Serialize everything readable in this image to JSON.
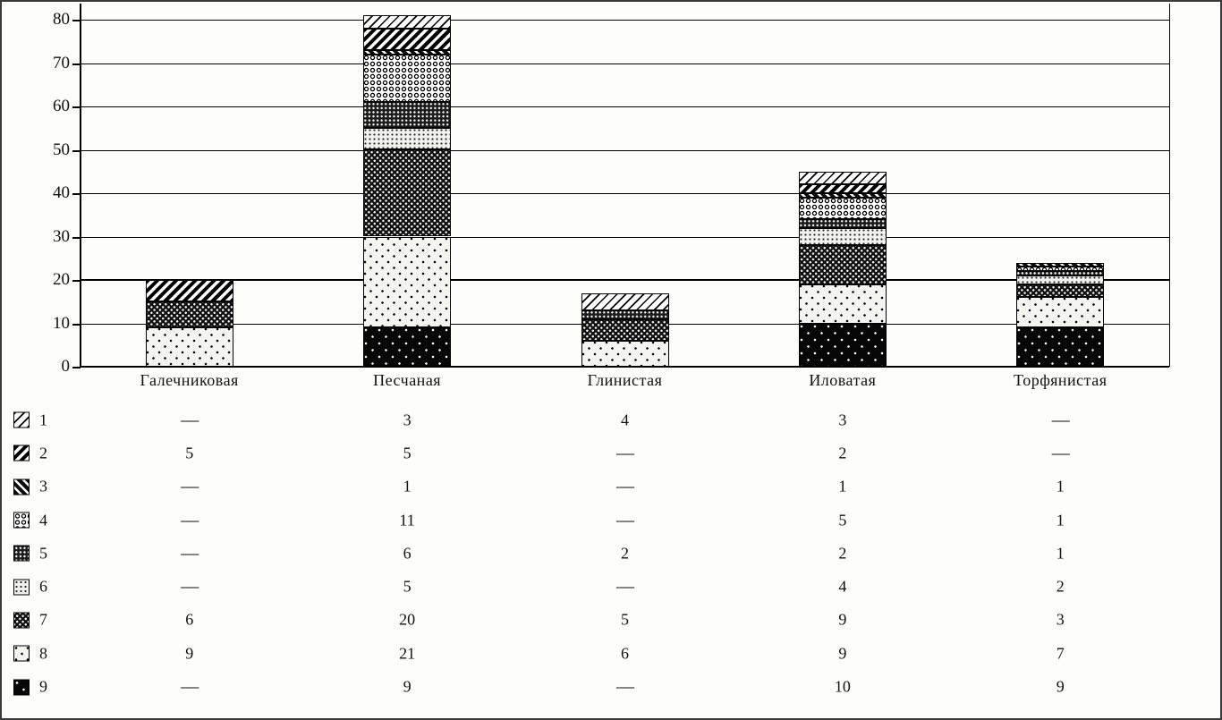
{
  "chart_data": {
    "type": "bar",
    "variant": "stacked-vertical",
    "title": "",
    "xlabel": "",
    "ylabel": "",
    "categories": [
      "Галечниковая",
      "Песчаная",
      "Глинистая",
      "Иловатая",
      "Торфянистая"
    ],
    "series": [
      {
        "name": "1",
        "pattern": "p1",
        "pattern_desc": "light diagonal hatch",
        "values": [
          null,
          3,
          4,
          3,
          null
        ]
      },
      {
        "name": "2",
        "pattern": "p2",
        "pattern_desc": "bold diagonal hatch",
        "values": [
          5,
          5,
          null,
          2,
          null
        ]
      },
      {
        "name": "3",
        "pattern": "p3",
        "pattern_desc": "dark with white diagonals",
        "values": [
          null,
          1,
          null,
          1,
          1
        ]
      },
      {
        "name": "4",
        "pattern": "p4",
        "pattern_desc": "ring / circle grid",
        "values": [
          null,
          11,
          null,
          5,
          1
        ]
      },
      {
        "name": "5",
        "pattern": "p5",
        "pattern_desc": "dark dense white dots",
        "values": [
          null,
          6,
          2,
          2,
          1
        ]
      },
      {
        "name": "6",
        "pattern": "p6",
        "pattern_desc": "light dense dark dots",
        "values": [
          null,
          5,
          null,
          4,
          2
        ]
      },
      {
        "name": "7",
        "pattern": "p7",
        "pattern_desc": "near-black dotted grid",
        "values": [
          6,
          20,
          5,
          9,
          3
        ]
      },
      {
        "name": "8",
        "pattern": "p8",
        "pattern_desc": "white sparse dark dots",
        "values": [
          9,
          21,
          6,
          9,
          7
        ]
      },
      {
        "name": "9",
        "pattern": "p9",
        "pattern_desc": "black sparse white dots",
        "values": [
          null,
          9,
          null,
          10,
          9
        ]
      }
    ],
    "stack_order_bottom_to_top": [
      "9",
      "8",
      "7",
      "6",
      "5",
      "4",
      "3",
      "2",
      "1"
    ],
    "totals": [
      20,
      81,
      17,
      45,
      24
    ],
    "yticks": [
      0,
      10,
      20,
      30,
      40,
      50,
      60,
      70,
      80
    ],
    "ylim": [
      0,
      80
    ],
    "grid": "horizontal",
    "legend_position": "left column of value table below chart",
    "missing_marker": "—"
  },
  "colors": {
    "ink": "#000000",
    "paper": "#fdfdfc"
  }
}
